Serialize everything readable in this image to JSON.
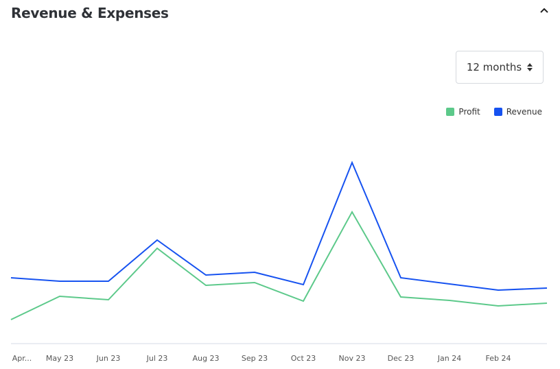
{
  "header": {
    "title": "Revenue & Expenses",
    "collapse_icon": "chevron-up-icon"
  },
  "period_select": {
    "value": "12 months",
    "icon": "sort-arrows-icon"
  },
  "chart_data": {
    "type": "line",
    "title": "",
    "xlabel": "",
    "ylabel": "",
    "categories": [
      "Apr...",
      "May 23",
      "Jun 23",
      "Jul 23",
      "Aug 23",
      "Sep 23",
      "Oct 23",
      "Nov 23",
      "Dec 23",
      "Jan 24",
      "Feb 24",
      ""
    ],
    "series": [
      {
        "name": "Profit",
        "color": "#5cc98a",
        "values": [
          34,
          68,
          63,
          138,
          84,
          88,
          61,
          191,
          67,
          62,
          54,
          58
        ]
      },
      {
        "name": "Revenue",
        "color": "#1652f0",
        "values": [
          95,
          90,
          90,
          150,
          99,
          103,
          85,
          263,
          95,
          86,
          77,
          80
        ]
      }
    ],
    "ylim": [
      0,
      290
    ],
    "grid": false,
    "legend": "top-right"
  }
}
